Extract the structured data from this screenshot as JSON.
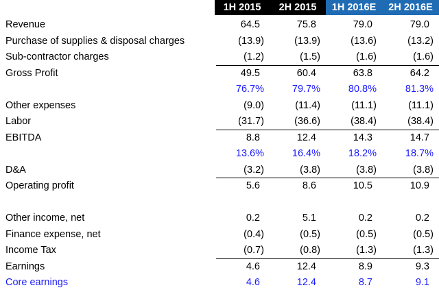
{
  "table": {
    "columns": [
      "1H 2015",
      "2H 2015",
      "1H 2016E",
      "2H 2016E"
    ],
    "rows": [
      {
        "label": "Revenue",
        "values": [
          "64.5",
          "75.8",
          "79.0",
          "79.0"
        ]
      },
      {
        "label": "Purchase of supplies & disposal charges",
        "values": [
          "(13.9)",
          "(13.9)",
          "(13.6)",
          "(13.2)"
        ]
      },
      {
        "label": "Sub-contractor charges",
        "values": [
          "(1.2)",
          "(1.5)",
          "(1.6)",
          "(1.6)"
        ]
      },
      {
        "label": "Gross Profit",
        "values": [
          "49.5",
          "60.4",
          "63.8",
          "64.2"
        ]
      },
      {
        "values": [
          "76.7%",
          "79.7%",
          "80.8%",
          "81.3%"
        ]
      },
      {
        "label": "Other expenses",
        "values": [
          "(9.0)",
          "(11.4)",
          "(11.1)",
          "(11.1)"
        ]
      },
      {
        "label": "Labor",
        "values": [
          "(31.7)",
          "(36.6)",
          "(38.4)",
          "(38.4)"
        ]
      },
      {
        "label": "EBITDA",
        "values": [
          "8.8",
          "12.4",
          "14.3",
          "14.7"
        ]
      },
      {
        "values": [
          "13.6%",
          "16.4%",
          "18.2%",
          "18.7%"
        ]
      },
      {
        "label": "D&A",
        "values": [
          "(3.2)",
          "(3.8)",
          "(3.8)",
          "(3.8)"
        ]
      },
      {
        "label": "Operating profit",
        "values": [
          "5.6",
          "8.6",
          "10.5",
          "10.9"
        ]
      },
      {
        "label": "Other income, net",
        "values": [
          "0.2",
          "5.1",
          "0.2",
          "0.2"
        ]
      },
      {
        "label": "Finance expense, net",
        "values": [
          "(0.4)",
          "(0.5)",
          "(0.5)",
          "(0.5)"
        ]
      },
      {
        "label": "Income Tax",
        "values": [
          "(0.7)",
          "(0.8)",
          "(1.3)",
          "(1.3)"
        ]
      },
      {
        "label": "Earnings",
        "values": [
          "4.6",
          "12.4",
          "8.9",
          "9.3"
        ]
      },
      {
        "label": "Core earnings",
        "values": [
          "4.6",
          "12.4",
          "8.7",
          "9.1"
        ]
      }
    ]
  }
}
